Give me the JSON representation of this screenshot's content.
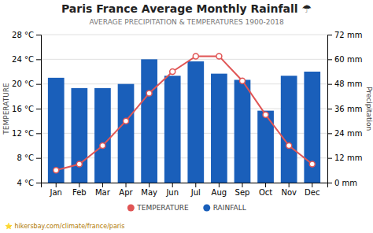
{
  "chart_data": {
    "type": "bar",
    "title": "Paris France Average Monthly Rainfall ☂",
    "subtitle": "AVERAGE PRECIPITATION & TEMPERATURES 1900-2018",
    "annotation": "⭐ hikersbay.com/climate/france/paris",
    "categories": [
      "Jan",
      "Feb",
      "Mar",
      "Apr",
      "May",
      "Jun",
      "Jul",
      "Aug",
      "Sep",
      "Oct",
      "Nov",
      "Dec"
    ],
    "series": [
      {
        "name": "TEMPERATURE",
        "type": "line",
        "marker": "circle",
        "color": "#e05555",
        "values": [
          6,
          7,
          10,
          14,
          18.5,
          22,
          24.5,
          24.5,
          20.5,
          15,
          10,
          7
        ]
      },
      {
        "name": "RAINFALL",
        "type": "bar",
        "axis": "y2",
        "color": "#1a5fba",
        "values": [
          51,
          46,
          46,
          48,
          60,
          52,
          59,
          53,
          50,
          35,
          52,
          54
        ]
      }
    ],
    "ylabel": "TEMPERATURE",
    "y2label": "Precipitation",
    "ylim": [
      4,
      28
    ],
    "yticks": [
      {
        "value": 4,
        "label": "4 °C"
      },
      {
        "value": 8,
        "label": "8 °C"
      },
      {
        "value": 12,
        "label": "12 °C"
      },
      {
        "value": 16,
        "label": "16 °C"
      },
      {
        "value": 20,
        "label": "20 °C"
      },
      {
        "value": 24,
        "label": "24 °C"
      },
      {
        "value": 28,
        "label": "28 °C"
      }
    ],
    "y2lim": [
      0,
      72
    ],
    "y2ticks": [
      {
        "value": 0,
        "label": "0 mm"
      },
      {
        "value": 12,
        "label": "12 mm"
      },
      {
        "value": 24,
        "label": "24 mm"
      },
      {
        "value": 36,
        "label": "36 mm"
      },
      {
        "value": 48,
        "label": "48 mm"
      },
      {
        "value": 60,
        "label": "60 mm"
      },
      {
        "value": 72,
        "label": "72 mm"
      }
    ],
    "grid": true,
    "legend": "bottom"
  }
}
